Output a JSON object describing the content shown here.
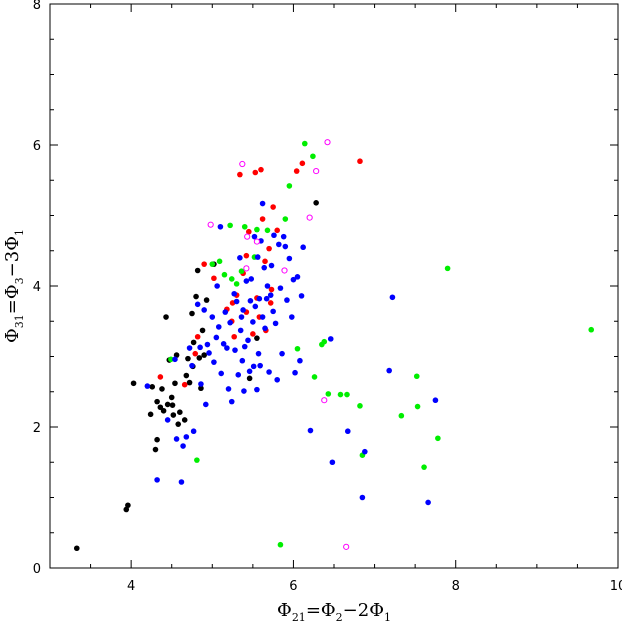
{
  "chart_data": {
    "type": "scatter",
    "title": "",
    "xlabel": {
      "base": "Φ",
      "sub": "21",
      "mid": "=Φ",
      "sub2": "2",
      "tail": "−2Φ",
      "sub3": "1"
    },
    "ylabel": {
      "base": "Φ",
      "sub": "31",
      "mid": "=Φ",
      "sub2": "3",
      "tail": "−3Φ",
      "sub3": "1"
    },
    "xlim": [
      3,
      10
    ],
    "ylim": [
      0,
      8
    ],
    "xticks": [
      4,
      6,
      8,
      10
    ],
    "yticks": [
      0,
      2,
      4,
      6,
      8
    ],
    "xticklabels": [
      "4",
      "6",
      "8",
      "10"
    ],
    "yticklabels": [
      "0",
      "2",
      "4",
      "6",
      "8"
    ],
    "grid": false,
    "colors": {
      "black": "#000000",
      "red": "#ff0000",
      "green": "#00ee00",
      "blue": "#0000ff",
      "magenta": "#ff00ff"
    },
    "series": [
      {
        "color_key": "black",
        "marker": "filled",
        "points": [
          [
            3.33,
            0.28
          ],
          [
            3.94,
            0.83
          ],
          [
            3.96,
            0.89
          ],
          [
            4.03,
            2.62
          ],
          [
            4.24,
            2.18
          ],
          [
            4.26,
            2.57
          ],
          [
            4.3,
            1.68
          ],
          [
            4.32,
            1.82
          ],
          [
            4.32,
            2.36
          ],
          [
            4.36,
            2.28
          ],
          [
            4.38,
            2.54
          ],
          [
            4.4,
            2.23
          ],
          [
            4.43,
            3.56
          ],
          [
            4.45,
            2.32
          ],
          [
            4.47,
            2.95
          ],
          [
            4.5,
            2.42
          ],
          [
            4.51,
            2.31
          ],
          [
            4.52,
            2.17
          ],
          [
            4.54,
            2.62
          ],
          [
            4.56,
            3.02
          ],
          [
            4.58,
            2.04
          ],
          [
            4.6,
            2.21
          ],
          [
            4.66,
            2.1
          ],
          [
            4.68,
            2.73
          ],
          [
            4.7,
            2.97
          ],
          [
            4.72,
            2.63
          ],
          [
            4.75,
            3.61
          ],
          [
            4.76,
            2.86
          ],
          [
            4.77,
            3.2
          ],
          [
            4.8,
            3.85
          ],
          [
            4.82,
            4.22
          ],
          [
            4.84,
            2.98
          ],
          [
            4.86,
            2.55
          ],
          [
            4.88,
            3.37
          ],
          [
            4.9,
            3.02
          ],
          [
            4.93,
            3.8
          ],
          [
            5.02,
            4.31
          ],
          [
            5.46,
            2.69
          ],
          [
            5.55,
            3.26
          ],
          [
            6.28,
            5.18
          ]
        ]
      },
      {
        "color_key": "red",
        "marker": "filled",
        "points": [
          [
            4.36,
            2.71
          ],
          [
            4.66,
            2.6
          ],
          [
            4.79,
            3.04
          ],
          [
            4.82,
            3.28
          ],
          [
            4.9,
            4.31
          ],
          [
            5.02,
            4.11
          ],
          [
            5.18,
            3.67
          ],
          [
            5.24,
            3.5
          ],
          [
            5.25,
            3.76
          ],
          [
            5.27,
            3.28
          ],
          [
            5.3,
            3.87
          ],
          [
            5.34,
            5.58
          ],
          [
            5.38,
            4.18
          ],
          [
            5.42,
            3.63
          ],
          [
            5.42,
            4.43
          ],
          [
            5.45,
            4.77
          ],
          [
            5.5,
            3.32
          ],
          [
            5.53,
            5.61
          ],
          [
            5.55,
            3.83
          ],
          [
            5.58,
            3.56
          ],
          [
            5.6,
            5.65
          ],
          [
            5.62,
            4.95
          ],
          [
            5.65,
            4.35
          ],
          [
            5.66,
            3.37
          ],
          [
            5.7,
            4.53
          ],
          [
            5.72,
            3.76
          ],
          [
            5.73,
            3.95
          ],
          [
            5.75,
            5.12
          ],
          [
            5.8,
            4.79
          ],
          [
            6.04,
            5.63
          ],
          [
            6.11,
            5.74
          ],
          [
            6.82,
            5.77
          ]
        ]
      },
      {
        "color_key": "green",
        "marker": "filled",
        "points": [
          [
            4.49,
            2.96
          ],
          [
            4.81,
            1.53
          ],
          [
            5.0,
            4.31
          ],
          [
            5.09,
            4.35
          ],
          [
            5.15,
            4.16
          ],
          [
            5.22,
            4.86
          ],
          [
            5.24,
            4.1
          ],
          [
            5.3,
            4.03
          ],
          [
            5.36,
            4.21
          ],
          [
            5.4,
            4.84
          ],
          [
            5.52,
            4.41
          ],
          [
            5.55,
            4.8
          ],
          [
            5.68,
            4.79
          ],
          [
            5.84,
            0.33
          ],
          [
            5.9,
            4.95
          ],
          [
            5.95,
            5.42
          ],
          [
            6.05,
            3.11
          ],
          [
            6.14,
            6.02
          ],
          [
            6.24,
            5.84
          ],
          [
            6.26,
            2.71
          ],
          [
            6.35,
            3.17
          ],
          [
            6.38,
            3.21
          ],
          [
            6.43,
            2.47
          ],
          [
            6.58,
            2.46
          ],
          [
            6.66,
            2.46
          ],
          [
            6.82,
            2.3
          ],
          [
            6.85,
            1.6
          ],
          [
            7.33,
            2.16
          ],
          [
            7.52,
            2.72
          ],
          [
            7.53,
            2.29
          ],
          [
            7.61,
            1.43
          ],
          [
            7.78,
            1.84
          ],
          [
            7.9,
            4.25
          ],
          [
            9.67,
            3.38
          ]
        ]
      },
      {
        "color_key": "blue",
        "marker": "filled",
        "points": [
          [
            4.2,
            2.58
          ],
          [
            4.32,
            1.25
          ],
          [
            4.45,
            2.1
          ],
          [
            4.54,
            2.96
          ],
          [
            4.56,
            1.83
          ],
          [
            4.62,
            1.22
          ],
          [
            4.64,
            1.73
          ],
          [
            4.68,
            1.86
          ],
          [
            4.72,
            3.12
          ],
          [
            4.75,
            2.87
          ],
          [
            4.77,
            1.94
          ],
          [
            4.82,
            3.74
          ],
          [
            4.85,
            3.13
          ],
          [
            4.86,
            2.61
          ],
          [
            4.9,
            3.66
          ],
          [
            4.92,
            2.32
          ],
          [
            4.94,
            3.17
          ],
          [
            4.96,
            3.05
          ],
          [
            5.0,
            3.56
          ],
          [
            5.02,
            2.92
          ],
          [
            5.05,
            3.27
          ],
          [
            5.06,
            4.0
          ],
          [
            5.08,
            3.42
          ],
          [
            5.1,
            4.84
          ],
          [
            5.11,
            2.76
          ],
          [
            5.14,
            3.18
          ],
          [
            5.16,
            3.63
          ],
          [
            5.18,
            3.12
          ],
          [
            5.2,
            2.54
          ],
          [
            5.22,
            3.48
          ],
          [
            5.24,
            2.36
          ],
          [
            5.27,
            3.89
          ],
          [
            5.28,
            3.09
          ],
          [
            5.3,
            3.78
          ],
          [
            5.32,
            2.74
          ],
          [
            5.34,
            4.4
          ],
          [
            5.35,
            3.37
          ],
          [
            5.36,
            3.56
          ],
          [
            5.37,
            2.94
          ],
          [
            5.38,
            3.66
          ],
          [
            5.39,
            2.51
          ],
          [
            5.4,
            3.14
          ],
          [
            5.42,
            4.07
          ],
          [
            5.44,
            3.23
          ],
          [
            5.46,
            2.79
          ],
          [
            5.47,
            3.79
          ],
          [
            5.48,
            4.1
          ],
          [
            5.5,
            3.49
          ],
          [
            5.51,
            2.86
          ],
          [
            5.52,
            4.7
          ],
          [
            5.53,
            3.71
          ],
          [
            5.55,
            2.53
          ],
          [
            5.56,
            4.41
          ],
          [
            5.57,
            3.04
          ],
          [
            5.58,
            3.82
          ],
          [
            5.59,
            2.87
          ],
          [
            5.6,
            4.64
          ],
          [
            5.62,
            5.17
          ],
          [
            5.62,
            3.56
          ],
          [
            5.64,
            4.26
          ],
          [
            5.65,
            3.4
          ],
          [
            5.67,
            3.82
          ],
          [
            5.68,
            4.0
          ],
          [
            5.7,
            2.78
          ],
          [
            5.72,
            3.87
          ],
          [
            5.73,
            4.29
          ],
          [
            5.75,
            3.64
          ],
          [
            5.76,
            4.72
          ],
          [
            5.78,
            3.47
          ],
          [
            5.8,
            2.67
          ],
          [
            5.82,
            4.59
          ],
          [
            5.84,
            3.97
          ],
          [
            5.86,
            3.04
          ],
          [
            5.88,
            4.7
          ],
          [
            5.9,
            4.56
          ],
          [
            5.92,
            3.8
          ],
          [
            5.95,
            4.39
          ],
          [
            5.98,
            3.56
          ],
          [
            6.0,
            4.09
          ],
          [
            6.02,
            2.77
          ],
          [
            6.05,
            4.13
          ],
          [
            6.08,
            2.94
          ],
          [
            6.1,
            3.86
          ],
          [
            6.12,
            4.55
          ],
          [
            6.21,
            1.95
          ],
          [
            6.46,
            3.25
          ],
          [
            6.48,
            1.5
          ],
          [
            6.67,
            1.94
          ],
          [
            6.85,
            1.0
          ],
          [
            6.88,
            1.65
          ],
          [
            7.18,
            2.8
          ],
          [
            7.22,
            3.84
          ],
          [
            7.66,
            0.93
          ],
          [
            7.75,
            2.38
          ]
        ]
      },
      {
        "color_key": "magenta",
        "marker": "open",
        "points": [
          [
            4.98,
            4.87
          ],
          [
            5.37,
            5.73
          ],
          [
            5.42,
            4.25
          ],
          [
            5.43,
            4.7
          ],
          [
            5.55,
            4.63
          ],
          [
            5.89,
            4.22
          ],
          [
            6.2,
            4.97
          ],
          [
            6.28,
            5.63
          ],
          [
            6.38,
            2.38
          ],
          [
            6.42,
            6.04
          ],
          [
            6.65,
            0.3
          ]
        ]
      }
    ]
  }
}
